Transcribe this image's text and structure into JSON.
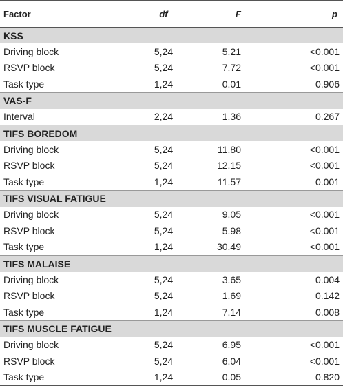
{
  "header": [
    "Factor",
    "df",
    "F",
    "p"
  ],
  "sections": [
    {
      "title": "KSS",
      "rows": [
        [
          "Driving block",
          "5,24",
          "5.21",
          "<0.001"
        ],
        [
          "RSVP block",
          "5,24",
          "7.72",
          "<0.001"
        ],
        [
          "Task type",
          "1,24",
          "0.01",
          "0.906"
        ]
      ]
    },
    {
      "title": "VAS-F",
      "rows": [
        [
          "Interval",
          "2,24",
          "1.36",
          "0.267"
        ]
      ]
    },
    {
      "title": "TIFS BOREDOM",
      "rows": [
        [
          "Driving block",
          "5,24",
          "11.80",
          "<0.001"
        ],
        [
          "RSVP block",
          "5,24",
          "12.15",
          "<0.001"
        ],
        [
          "Task type",
          "1,24",
          "11.57",
          "0.001"
        ]
      ]
    },
    {
      "title": "TIFS VISUAL FATIGUE",
      "rows": [
        [
          "Driving block",
          "5,24",
          "9.05",
          "<0.001"
        ],
        [
          "RSVP block",
          "5,24",
          "5.98",
          "<0.001"
        ],
        [
          "Task type",
          "1,24",
          "30.49",
          "<0.001"
        ]
      ]
    },
    {
      "title": "TIFS MALAISE",
      "rows": [
        [
          "Driving block",
          "5,24",
          "3.65",
          "0.004"
        ],
        [
          "RSVP block",
          "5,24",
          "1.69",
          "0.142"
        ],
        [
          "Task type",
          "1,24",
          "7.14",
          "0.008"
        ]
      ]
    },
    {
      "title": "TIFS MUSCLE FATIGUE",
      "rows": [
        [
          "Driving block",
          "5,24",
          "6.95",
          "<0.001"
        ],
        [
          "RSVP block",
          "5,24",
          "6.04",
          "<0.001"
        ],
        [
          "Task type",
          "1,24",
          "0.05",
          "0.820"
        ]
      ]
    }
  ]
}
